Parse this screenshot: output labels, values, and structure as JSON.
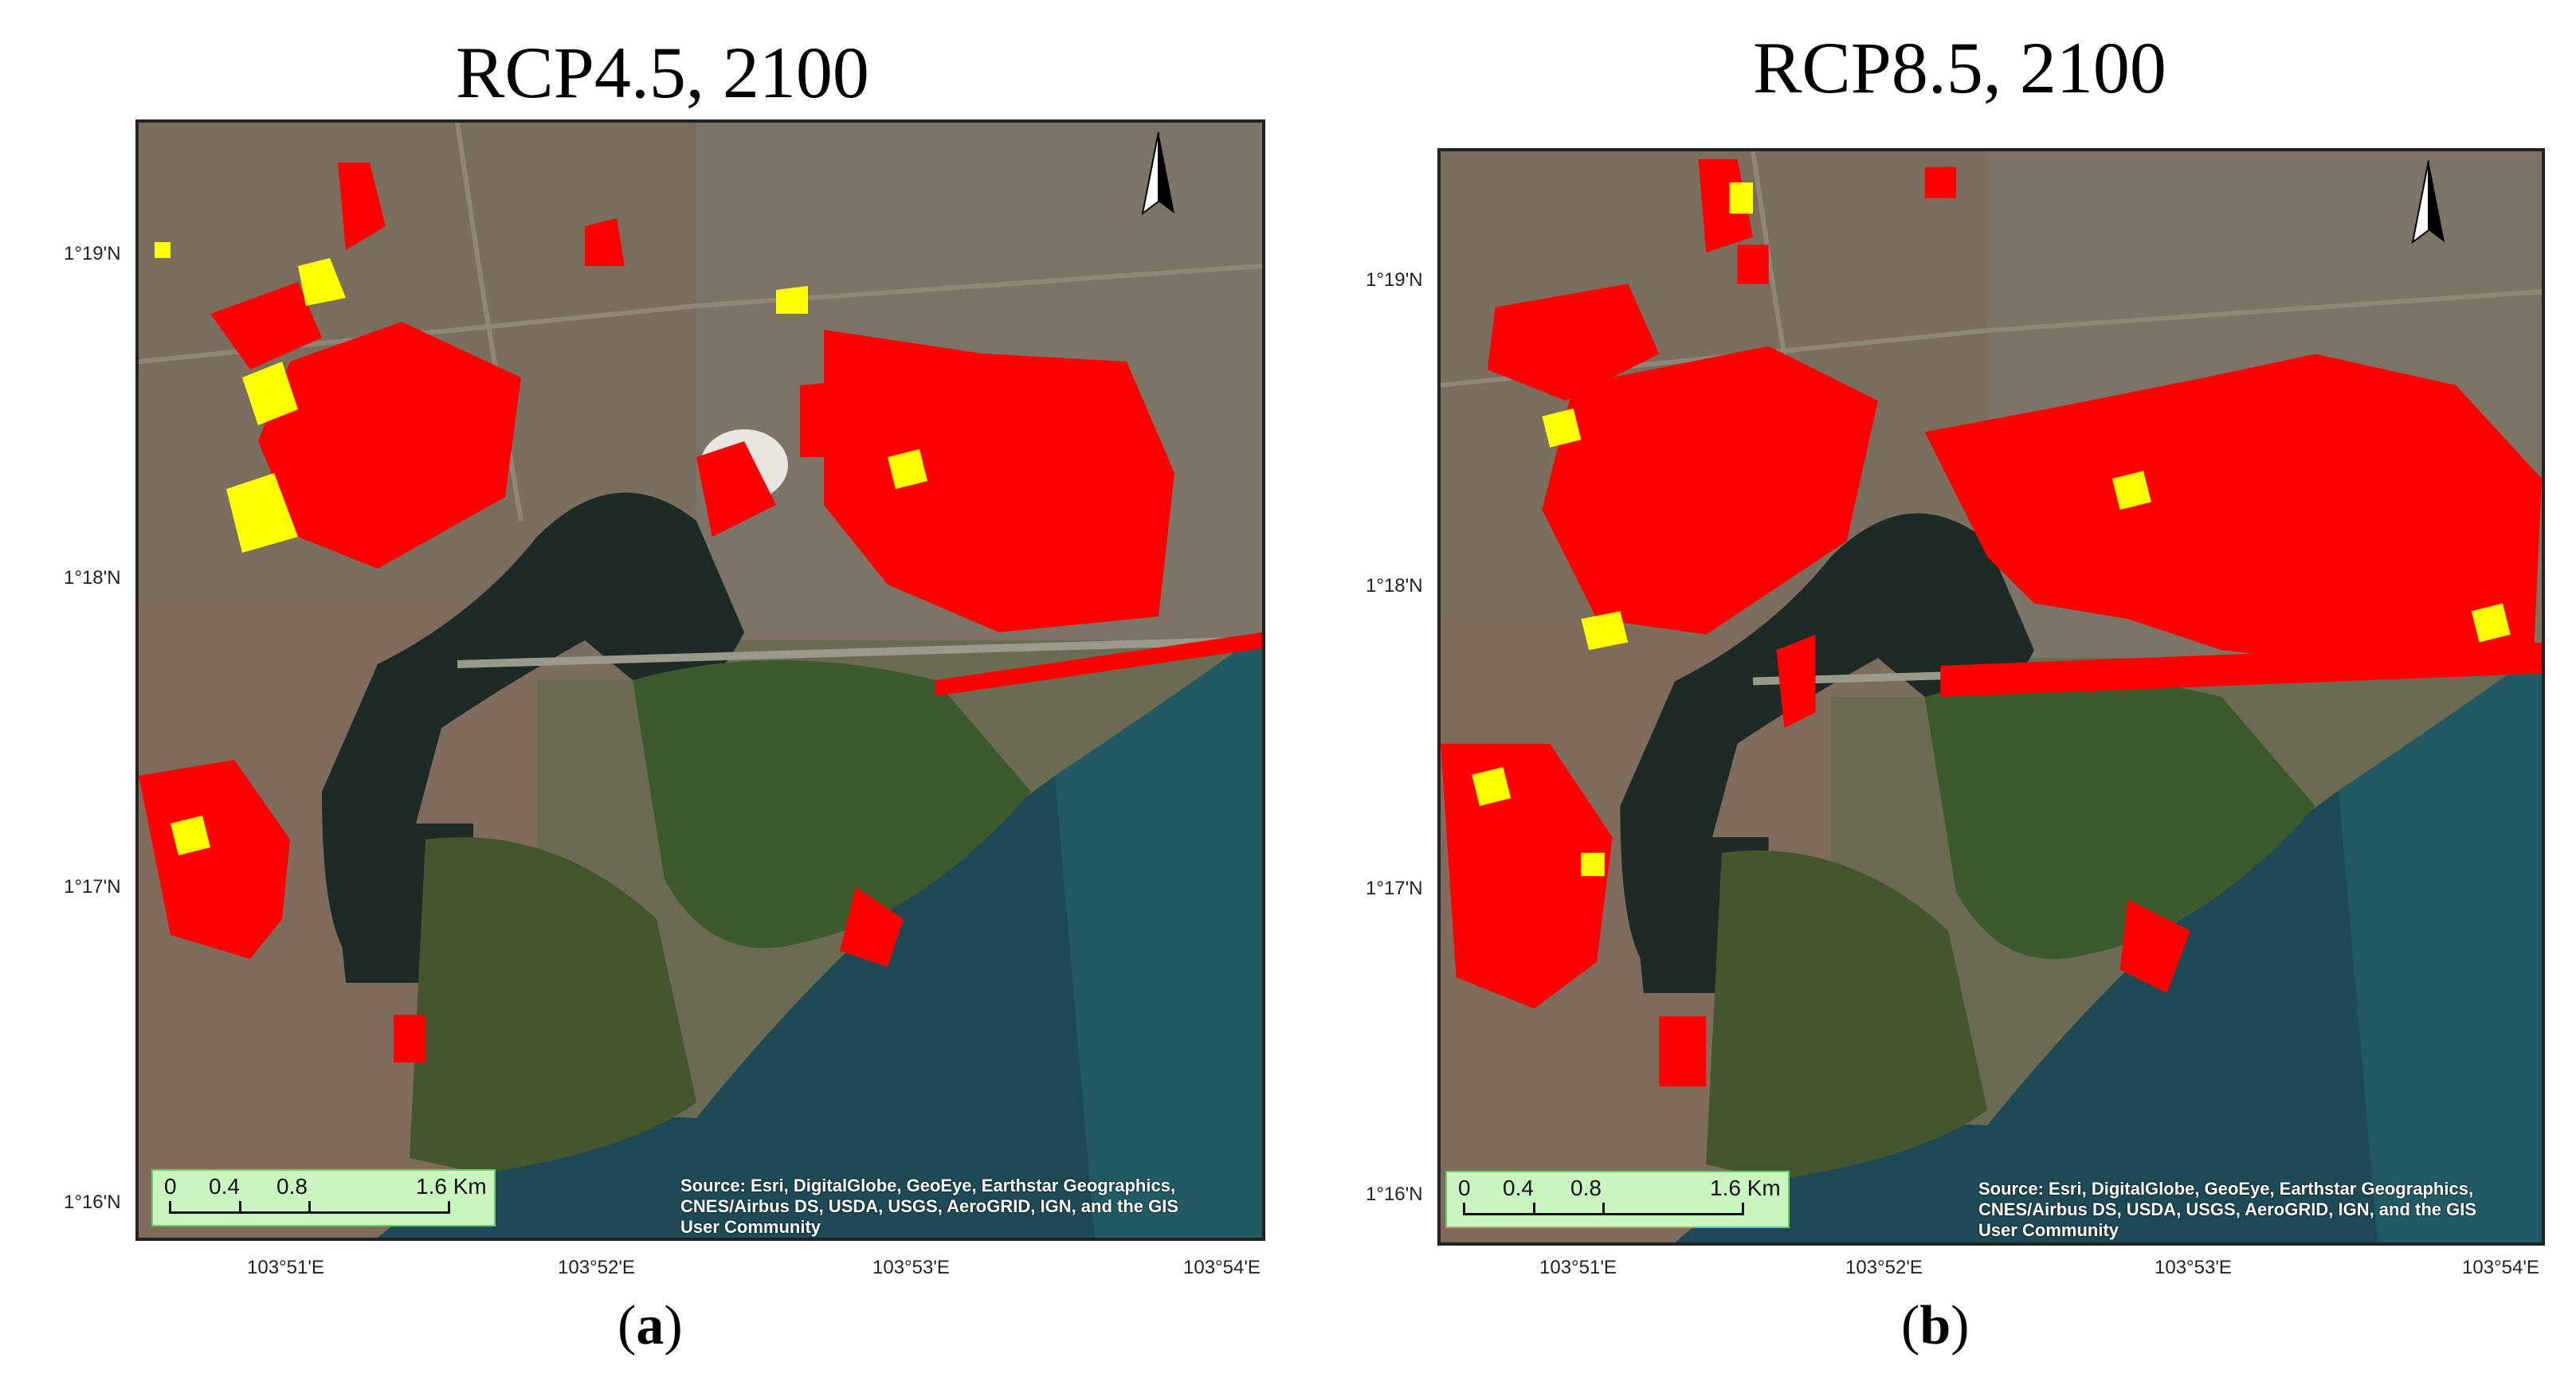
{
  "panels": [
    {
      "title": "RCP4.5, 2100",
      "caption_letter": "a",
      "lat_labels": [
        "1°19'N",
        "1°18'N",
        "1°17'N",
        "1°16'N"
      ],
      "lon_labels": [
        "103°51'E",
        "103°52'E",
        "103°53'E",
        "103°54'E"
      ],
      "scalebar": {
        "labels": [
          "0",
          "0.4",
          "0.8",
          "1.6 Km"
        ]
      },
      "source_text": "Source: Esri, DigitalGlobe, GeoEye, Earthstar Geographics, CNES/Airbus DS, USDA, USGS, AeroGRID, IGN, and the GIS User Community",
      "north_label": "N"
    },
    {
      "title": "RCP8.5, 2100",
      "caption_letter": "b",
      "lat_labels": [
        "1°19'N",
        "1°18'N",
        "1°17'N",
        "1°16'N"
      ],
      "lon_labels": [
        "103°51'E",
        "103°52'E",
        "103°53'E",
        "103°54'E"
      ],
      "scalebar": {
        "labels": [
          "0",
          "0.4",
          "0.8",
          "1.6 Km"
        ]
      },
      "source_text": "Source: Esri, DigitalGlobe, GeoEye, Earthstar Geographics, CNES/Airbus DS, USDA, USGS, AeroGRID, IGN, and the GIS User Community",
      "north_label": "N"
    }
  ],
  "colors": {
    "flood_high": "#ff0000",
    "flood_low": "#ffff00",
    "sea": "#1c4a52",
    "land": "#5a6a44",
    "urban": "#8a7a6a"
  }
}
